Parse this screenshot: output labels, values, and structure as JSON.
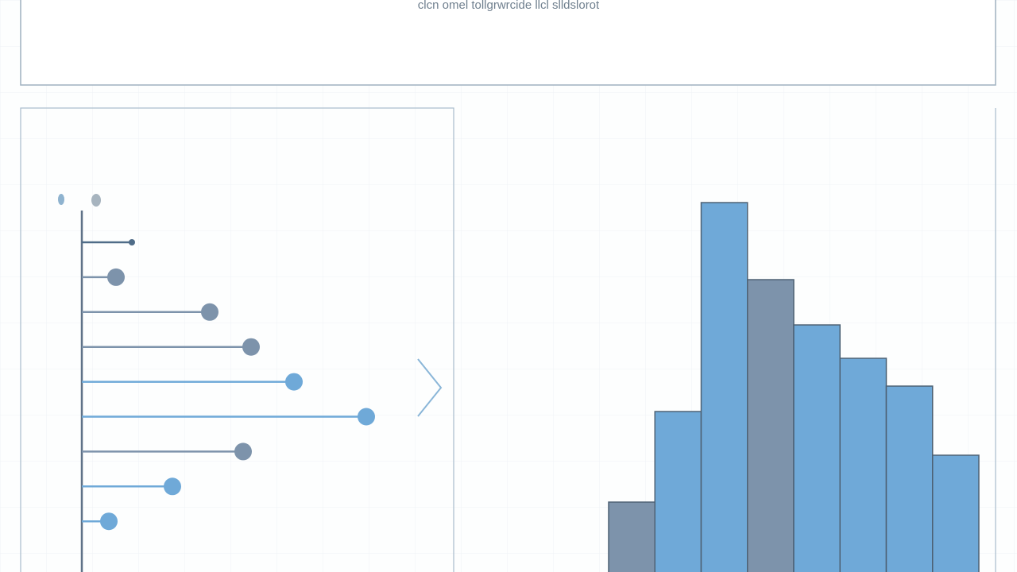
{
  "header": {
    "title": "clcn omel tollgrwrcide llcl slldslorot"
  },
  "chart_data": [
    {
      "type": "lollipop",
      "categories": [
        null,
        null,
        null,
        null,
        null,
        null,
        null,
        null,
        null
      ],
      "values": [
        63,
        43,
        161,
        213,
        267,
        358,
        203,
        114,
        34
      ],
      "colors": [
        "#4f6c88",
        "#7d93ab",
        "#7d93ab",
        "#7d93ab",
        "#6fa9d8",
        "#6fa9d8",
        "#7d93ab",
        "#6fa9d8",
        "#6fa9d8"
      ],
      "xlim": [
        0,
        400
      ]
    },
    {
      "type": "bar",
      "categories": [
        null,
        null,
        null,
        null,
        null,
        null,
        null,
        null
      ],
      "values": [
        88,
        202,
        465,
        368,
        311,
        269,
        234,
        147
      ],
      "colors": [
        "#7d93ab",
        "#6fa9d8",
        "#6fa9d8",
        "#7d93ab",
        "#6fa9d8",
        "#6fa9d8",
        "#6fa9d8",
        "#6fa9d8"
      ],
      "ylim": [
        0,
        500
      ]
    }
  ]
}
